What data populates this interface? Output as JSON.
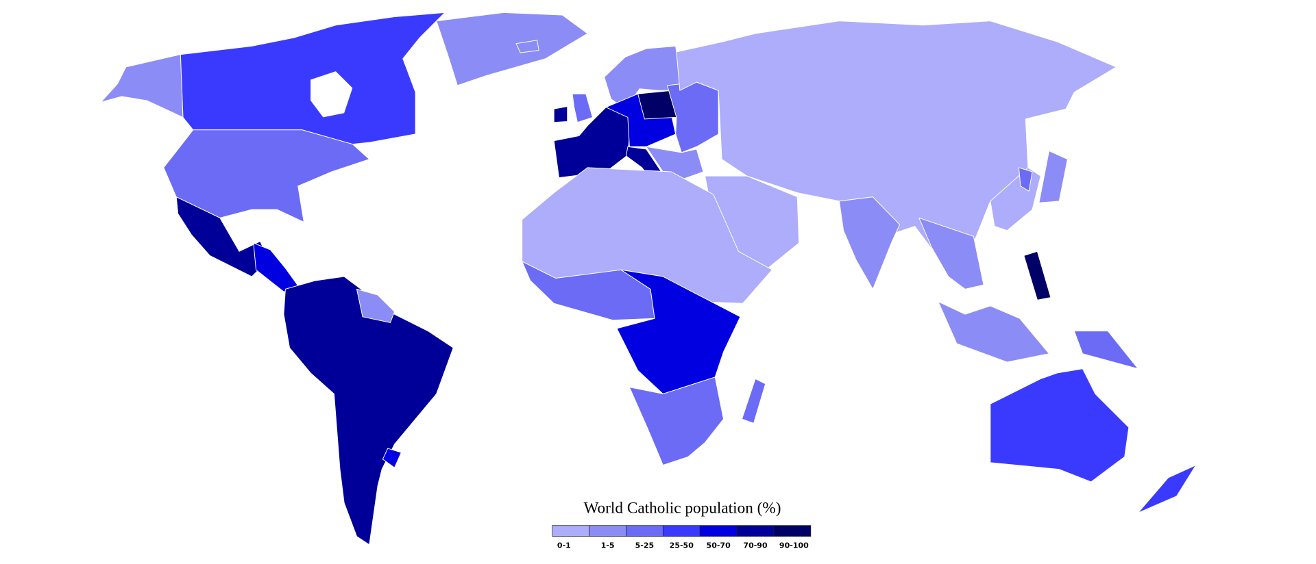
{
  "map": {
    "title": "World Catholic population (%)"
  },
  "legend": {
    "items": [
      {
        "label": "0-1",
        "color": "#adadfb"
      },
      {
        "label": "1-5",
        "color": "#8c8cf6"
      },
      {
        "label": "5-25",
        "color": "#6b6bf6"
      },
      {
        "label": "25-50",
        "color": "#3a3aff"
      },
      {
        "label": "50-70",
        "color": "#0000e0"
      },
      {
        "label": "70-90",
        "color": "#000099"
      },
      {
        "label": "90-100",
        "color": "#000066"
      }
    ]
  }
}
